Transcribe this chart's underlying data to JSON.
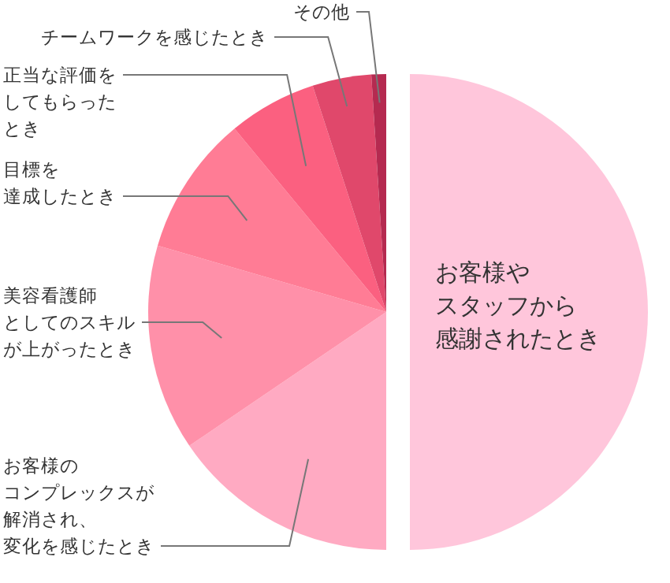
{
  "chart_data": {
    "type": "pie",
    "categories": [
      "お客様やスタッフから感謝されたとき",
      "お客様のコンプレックスが解消され、変化を感じたとき",
      "美容看護師としてのスキルが上がったとき",
      "目標を達成したとき",
      "正当な評価をしてもらったとき",
      "チームワークを感じたとき",
      "その他"
    ],
    "values": [
      50,
      15.5,
      14,
      9.5,
      6,
      4,
      1
    ],
    "colors": [
      "#ffc6db",
      "#ffaac2",
      "#ff90a9",
      "#ff7c95",
      "#fb6080",
      "#e0486b",
      "#b52a50"
    ]
  }
}
